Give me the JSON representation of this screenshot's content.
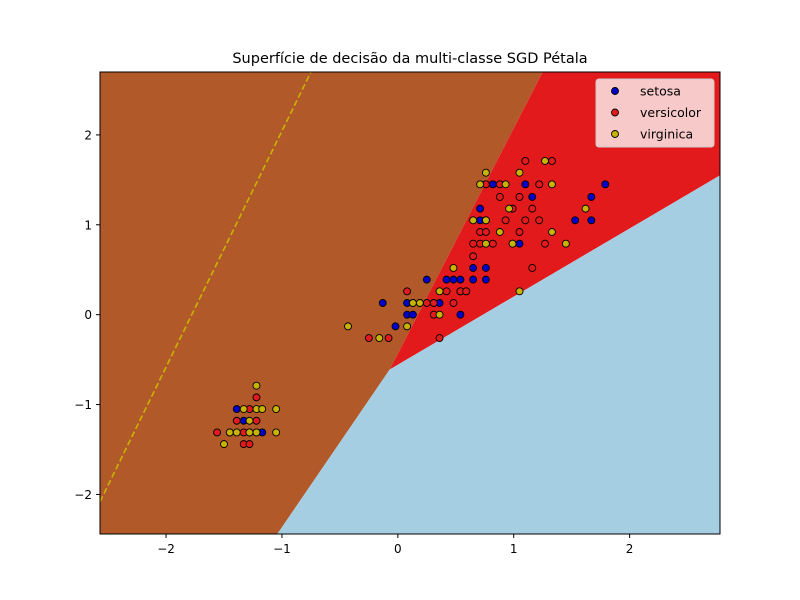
{
  "chart_data": {
    "type": "scatter",
    "title": "Superfície de decisão da multi-classe SGD Pétala",
    "xlabel": "",
    "ylabel": "",
    "xlim": [
      -2.57,
      2.78
    ],
    "ylim": [
      -2.44,
      2.7
    ],
    "x_ticks": [
      -2,
      -1,
      0,
      1,
      2
    ],
    "y_ticks": [
      -2,
      -1,
      0,
      1,
      2
    ],
    "x_tick_labels": [
      "−2",
      "−1",
      "0",
      "1",
      "2"
    ],
    "y_tick_labels": [
      "−2",
      "−1",
      "0",
      "1",
      "2"
    ],
    "grid": false,
    "legend_position": "top-right",
    "decision_regions": {
      "colors": {
        "setosa": "#b15928",
        "versicolor": "#e31a1c",
        "virginica": "#a6cee3"
      },
      "vertex": [
        -0.07,
        -0.61
      ],
      "boundary_setosa_upper_end": [
        1.25,
        2.7
      ],
      "boundary_setosa_lower_end": [
        -1.04,
        -2.44
      ],
      "boundary_versicolor_virginica_end": [
        2.78,
        1.55
      ]
    },
    "dashed_lines": [
      {
        "color": "#c8b400",
        "from": [
          -2.57,
          -2.08
        ],
        "to": [
          -0.75,
          2.7
        ]
      }
    ],
    "series": [
      {
        "name": "setosa",
        "color": "#0000cc",
        "points": [
          [
            -1.33,
            -1.18
          ],
          [
            -1.39,
            -1.05
          ],
          [
            -1.28,
            -1.31
          ],
          [
            -1.17,
            -1.31
          ],
          [
            -0.13,
            0.13
          ],
          [
            0.25,
            0.39
          ],
          [
            0.48,
            0.39
          ],
          [
            0.54,
            0.39
          ],
          [
            0.54,
            0.26
          ],
          [
            0.42,
            0.39
          ],
          [
            0.65,
            0.52
          ],
          [
            0.76,
            0.52
          ],
          [
            0.82,
            1.45
          ],
          [
            0.71,
            1.05
          ],
          [
            0.76,
            0.39
          ],
          [
            0.65,
            0.39
          ],
          [
            0.71,
            1.18
          ],
          [
            0.76,
            1.05
          ],
          [
            0.99,
            0.79
          ],
          [
            1.05,
            0.79
          ],
          [
            1.1,
            1.45
          ],
          [
            1.16,
            1.31
          ],
          [
            1.53,
            1.05
          ],
          [
            1.67,
            1.31
          ],
          [
            1.67,
            1.05
          ],
          [
            1.79,
            1.45
          ],
          [
            0.31,
            0.13
          ],
          [
            0.08,
            0.0
          ],
          [
            0.13,
            0.0
          ],
          [
            0.08,
            0.13
          ],
          [
            0.36,
            0.13
          ],
          [
            0.54,
            0.0
          ],
          [
            -0.02,
            -0.13
          ]
        ]
      },
      {
        "name": "versicolor",
        "color": "#e31a1c",
        "points": [
          [
            -1.56,
            -1.31
          ],
          [
            -1.45,
            -1.31
          ],
          [
            -1.39,
            -1.18
          ],
          [
            -1.33,
            -1.31
          ],
          [
            -1.33,
            -1.44
          ],
          [
            -1.28,
            -1.05
          ],
          [
            -1.28,
            -1.44
          ],
          [
            -1.22,
            -1.18
          ],
          [
            -1.22,
            -0.92
          ],
          [
            -1.22,
            -1.31
          ],
          [
            -0.25,
            -0.26
          ],
          [
            -0.08,
            -0.26
          ],
          [
            0.08,
            0.26
          ],
          [
            0.13,
            0.13
          ],
          [
            0.19,
            0.13
          ],
          [
            0.25,
            0.13
          ],
          [
            0.31,
            0.0
          ],
          [
            0.31,
            0.13
          ],
          [
            0.36,
            -0.26
          ],
          [
            0.42,
            0.26
          ],
          [
            0.48,
            0.13
          ],
          [
            0.54,
            0.26
          ],
          [
            0.59,
            0.26
          ],
          [
            0.65,
            0.65
          ],
          [
            0.65,
            0.79
          ],
          [
            0.71,
            0.79
          ],
          [
            0.71,
            0.92
          ],
          [
            0.76,
            0.92
          ],
          [
            0.76,
            1.45
          ],
          [
            0.82,
            0.79
          ],
          [
            0.88,
            1.45
          ],
          [
            0.88,
            1.31
          ],
          [
            0.93,
            1.05
          ],
          [
            0.99,
            1.18
          ],
          [
            1.05,
            1.31
          ],
          [
            1.05,
            0.92
          ],
          [
            1.1,
            1.71
          ],
          [
            1.1,
            1.05
          ],
          [
            1.16,
            1.18
          ],
          [
            1.16,
            0.52
          ],
          [
            1.22,
            1.45
          ],
          [
            1.22,
            1.05
          ],
          [
            1.27,
            0.79
          ],
          [
            1.33,
            1.71
          ],
          [
            0.54,
            0.26
          ],
          [
            0.59,
            0.26
          ]
        ]
      },
      {
        "name": "virginica",
        "color": "#c8b400",
        "points": [
          [
            -1.5,
            -1.44
          ],
          [
            -1.45,
            -1.31
          ],
          [
            -1.39,
            -1.31
          ],
          [
            -1.33,
            -1.05
          ],
          [
            -1.28,
            -1.31
          ],
          [
            -1.28,
            -1.18
          ],
          [
            -1.22,
            -1.05
          ],
          [
            -1.22,
            -1.31
          ],
          [
            -1.22,
            -0.79
          ],
          [
            -1.17,
            -1.05
          ],
          [
            -1.05,
            -1.05
          ],
          [
            -1.05,
            -1.31
          ],
          [
            -0.43,
            -0.13
          ],
          [
            -0.16,
            -0.26
          ],
          [
            0.08,
            -0.13
          ],
          [
            0.13,
            0.13
          ],
          [
            0.19,
            0.13
          ],
          [
            0.36,
            0.26
          ],
          [
            0.36,
            0.0
          ],
          [
            0.48,
            0.52
          ],
          [
            0.65,
            1.05
          ],
          [
            0.71,
            1.45
          ],
          [
            0.76,
            1.58
          ],
          [
            0.76,
            1.05
          ],
          [
            0.76,
            0.79
          ],
          [
            0.88,
            0.92
          ],
          [
            0.93,
            1.45
          ],
          [
            0.96,
            1.18
          ],
          [
            0.99,
            0.79
          ],
          [
            1.05,
            1.58
          ],
          [
            1.05,
            0.26
          ],
          [
            1.27,
            1.71
          ],
          [
            1.33,
            1.45
          ],
          [
            1.33,
            0.92
          ],
          [
            1.45,
            0.79
          ],
          [
            1.62,
            1.18
          ]
        ]
      }
    ]
  }
}
